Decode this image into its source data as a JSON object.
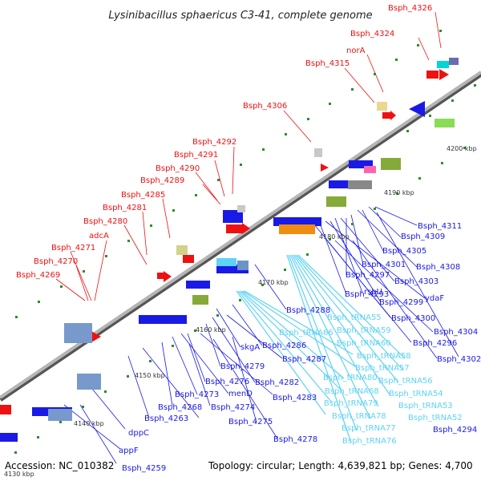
{
  "title": "Lysinibacillus sphaericus C3-41, complete genome",
  "footer": {
    "accession": "Accession: NC_010382",
    "stats": "Topology: circular; Length: 4,639,821 bp; Genes: 4,700"
  },
  "colors": {
    "forward": "#ee1111",
    "reverse": "#1a1ae6",
    "trna": "#5fd3f3",
    "backbone": "#888888",
    "tick": "#2e8b2e"
  },
  "kbp_labels": [
    "4130 kbp",
    "4140 kbp",
    "4150 kbp",
    "4160 kbp",
    "4170 kbp",
    "4180 kbp",
    "4190 kbp",
    "4200 kbp"
  ],
  "forward_labels": [
    "Bsph_4326",
    "Bsph_4324",
    "norA",
    "Bsph_4315",
    "Bsph_4306",
    "Bsph_4292",
    "Bsph_4291",
    "Bsph_4290",
    "Bsph_4289",
    "Bsph_4285",
    "Bsph_4281",
    "Bsph_4280",
    "adcA",
    "Bsph_4271",
    "Bsph_4270",
    "Bsph_4269"
  ],
  "reverse_labels": [
    "Bsph_4311",
    "Bsph_4309",
    "Bsph_4305",
    "Bsph_4308",
    "Bsph_4301",
    "Bsph_4297",
    "Bsph_4303",
    "rsbU",
    "Bsph_4299",
    "ydaF",
    "Bsph_4293",
    "Bsph_4300",
    "Bsph_4288",
    "Bsph_tRNA55",
    "Bsph_4304",
    "Bsph_tRNA66",
    "Bsph_tRNA59",
    "Bsph_4296",
    "skgA",
    "Bsph_4286",
    "Bsph_tRNA60",
    "Bsph_4302",
    "Bsph_4287",
    "Bsph_tRNA58",
    "Bsph_tRNA57",
    "Bsph_4279",
    "Bsph_4282",
    "Bsph_tRNA80",
    "Bsph_tRNA56",
    "Bsph_4276",
    "menD",
    "Bsph_tRNA68",
    "Bsph_tRNA54",
    "Bsph_4273",
    "Bsph_4283",
    "Bsph_tRNA79",
    "Bsph_4268",
    "Bsph_4274",
    "Bsph_tRNA53",
    "Bsph_tRNA78",
    "Bsph_4263",
    "Bsph_4275",
    "Bsph_tRNA52",
    "Bsph_tRNA77",
    "Bsph_4294",
    "Bsph_tRNA76",
    "Bsph_4278",
    "dppC",
    "appF",
    "Bsph_4259"
  ]
}
